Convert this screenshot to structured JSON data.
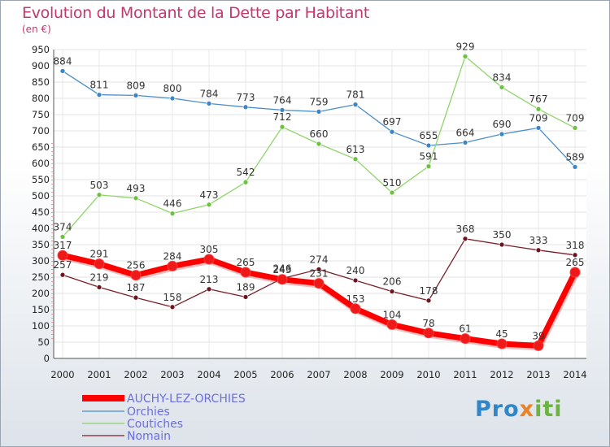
{
  "title": "Evolution du Montant de la Dette par Habitant",
  "unit": "(en €)",
  "logo": [
    "Pro",
    "x",
    "iti"
  ],
  "chart_data": {
    "type": "line",
    "x": [
      2000,
      2001,
      2002,
      2003,
      2004,
      2005,
      2006,
      2007,
      2008,
      2009,
      2010,
      2011,
      2012,
      2013,
      2014
    ],
    "ylim": [
      0,
      950
    ],
    "yticks": [
      0,
      50,
      100,
      150,
      200,
      250,
      300,
      350,
      400,
      450,
      500,
      550,
      600,
      650,
      700,
      750,
      800,
      850,
      900,
      950
    ],
    "grid": true,
    "legend": "bottom-left",
    "series": [
      {
        "name": "Orchies",
        "color": "#4b8ec7",
        "dot": "#3c85c6",
        "values": [
          884,
          811,
          809,
          800,
          784,
          773,
          764,
          759,
          781,
          697,
          655,
          664,
          690,
          709,
          589
        ]
      },
      {
        "name": "Coutiches",
        "color": "#8fd46a",
        "dot": "#6cc240",
        "values": [
          374,
          503,
          493,
          446,
          473,
          542,
          712,
          660,
          613,
          510,
          591,
          929,
          834,
          767,
          709
        ]
      },
      {
        "name": "Nomain",
        "color": "#7a1f2a",
        "dot": "#6b1520",
        "values": [
          257,
          219,
          187,
          158,
          213,
          189,
          246,
          274,
          240,
          206,
          178,
          368,
          350,
          333,
          318
        ]
      },
      {
        "name": "AUCHY-LEZ-ORCHIES",
        "color": "#ff0000",
        "dot": "#ee1a1a",
        "values": [
          317,
          291,
          256,
          284,
          305,
          265,
          243,
          231,
          153,
          104,
          78,
          61,
          45,
          39,
          265
        ]
      }
    ]
  }
}
